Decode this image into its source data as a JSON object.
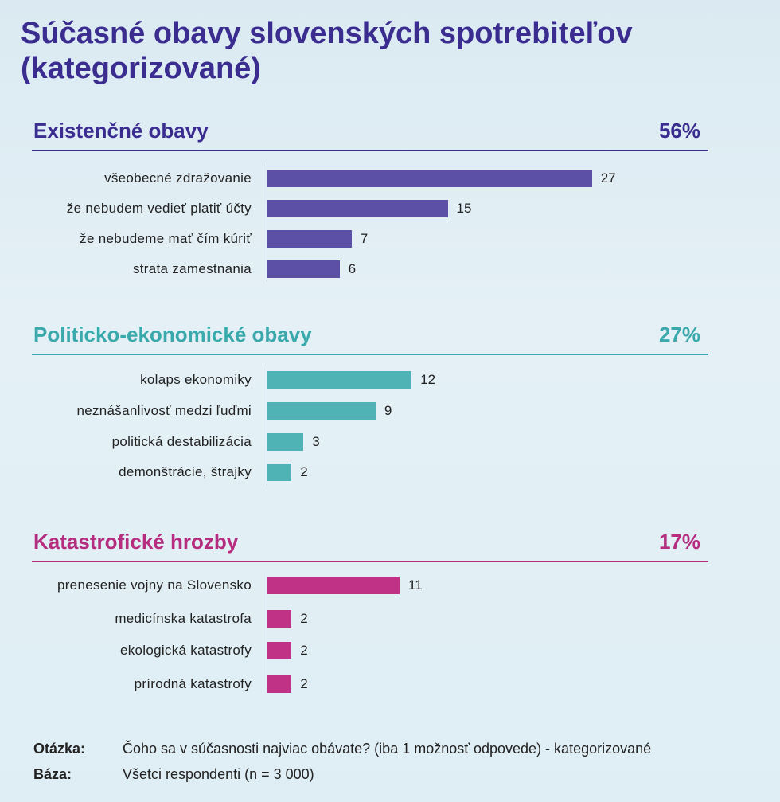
{
  "title": "Súčasné obavy slovenských spotrebiteľov (kategorizované)",
  "chart_data": {
    "type": "bar",
    "orientation": "horizontal",
    "groups": [
      {
        "name": "Existenčné obavy",
        "share": "56%",
        "color": "#5b4fa6",
        "head_color": "#3a2d8f",
        "categories": [
          "všeobecné zdražovanie",
          "že nebudem vedieť platiť účty",
          "že nebudeme mať čím kúriť",
          "strata zamestnania"
        ],
        "values": [
          27,
          15,
          7,
          6
        ]
      },
      {
        "name": "Politicko-ekonomické obavy",
        "share": "27%",
        "color": "#4fb3b5",
        "head_color": "#3aa9ab",
        "categories": [
          "kolaps ekonomiky",
          "neznášanlivosť medzi ľuďmi",
          "politická destabilizácia",
          "demonštrácie, štrajky"
        ],
        "values": [
          12,
          9,
          3,
          2
        ]
      },
      {
        "name": "Katastrofické hrozby",
        "share": "17%",
        "color": "#bf3285",
        "head_color": "#b62c7f",
        "categories": [
          "prenesenie vojny na Slovensko",
          "medicínska katastrofa",
          "ekologická katastrofy",
          "prírodná katastrofy"
        ],
        "values": [
          11,
          2,
          2,
          2
        ]
      }
    ]
  },
  "footer": {
    "question_label": "Otázka:",
    "question": "Čoho sa v súčasnosti najviac obávate? (iba 1 možnosť odpovede) - kategorizované",
    "base_label": "Báza:",
    "base": "Všetci respondenti (n = 3 000)"
  }
}
